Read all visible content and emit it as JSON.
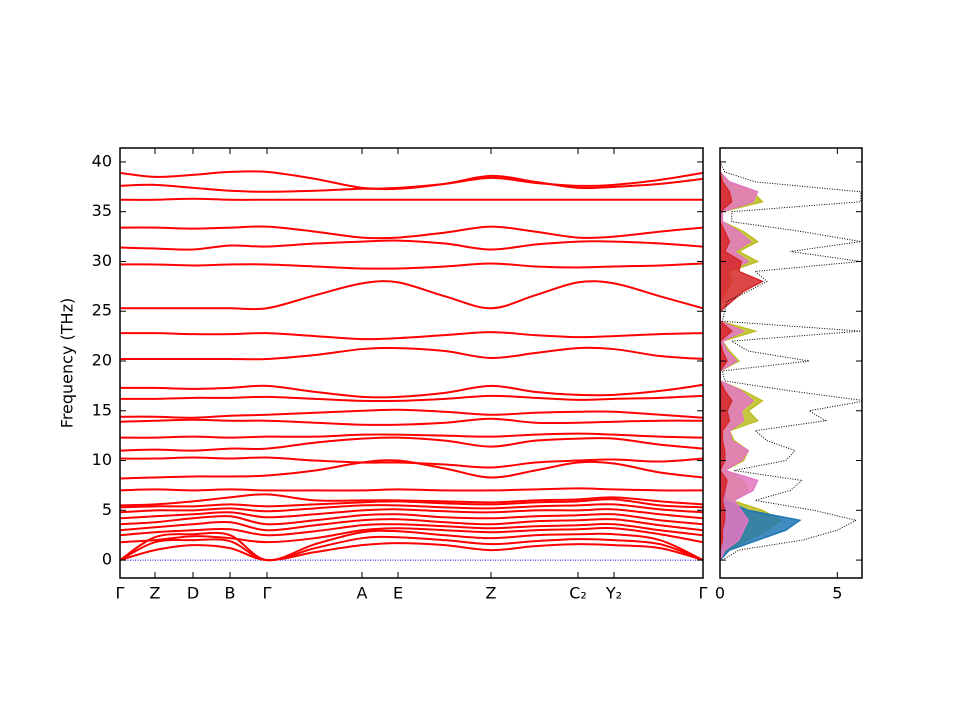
{
  "chart_data": [
    {
      "type": "bands",
      "ylabel": "Frequency (THz)",
      "x": [
        0,
        35,
        73,
        110,
        147,
        195,
        242,
        278,
        325,
        371,
        415,
        458,
        494,
        540,
        583
      ],
      "xlim": [
        0,
        583
      ],
      "xticks": [
        {
          "value": 0,
          "label": "Γ"
        },
        {
          "value": 35,
          "label": "Z"
        },
        {
          "value": 73,
          "label": "D"
        },
        {
          "value": 110,
          "label": "B"
        },
        {
          "value": 147,
          "label": "Γ"
        },
        {
          "value": 242,
          "label": "A"
        },
        {
          "value": 278,
          "label": "E"
        },
        {
          "value": 371,
          "label": "Z"
        },
        {
          "value": 458,
          "label": "C₂"
        },
        {
          "value": 494,
          "label": "Y₂"
        },
        {
          "value": 583,
          "label": "Γ"
        }
      ],
      "ylim": [
        -1.8,
        41.4
      ],
      "yticks": [
        0,
        5,
        10,
        15,
        20,
        25,
        30,
        35,
        40
      ],
      "color": "#ff0000",
      "bands": [
        [
          0,
          1.0,
          1.5,
          1.2,
          0,
          0.8,
          1.5,
          1.7,
          1.5,
          1.0,
          1.4,
          1.6,
          1.5,
          1.2,
          0
        ],
        [
          0,
          1.8,
          2.0,
          1.9,
          0,
          1.2,
          2.2,
          2.3,
          2.0,
          1.6,
          1.9,
          2.1,
          2.0,
          1.6,
          0
        ],
        [
          0,
          2.3,
          2.6,
          2.5,
          0,
          1.6,
          2.8,
          2.9,
          2.5,
          2.2,
          2.5,
          2.6,
          2.6,
          2.0,
          0
        ],
        [
          1.8,
          2.0,
          2.4,
          2.2,
          1.8,
          2.2,
          3.0,
          3.2,
          3.0,
          2.8,
          3.0,
          3.1,
          3.2,
          2.6,
          1.8
        ],
        [
          2.5,
          2.8,
          3.0,
          3.1,
          2.5,
          2.9,
          3.5,
          3.6,
          3.4,
          3.2,
          3.4,
          3.5,
          3.6,
          3.0,
          2.5
        ],
        [
          3.0,
          3.3,
          3.6,
          3.8,
          3.0,
          3.5,
          4.0,
          4.1,
          3.8,
          3.6,
          3.9,
          4.0,
          4.1,
          3.5,
          3.0
        ],
        [
          3.6,
          3.8,
          4.2,
          4.4,
          3.6,
          4.0,
          4.5,
          4.6,
          4.3,
          4.2,
          4.4,
          4.5,
          4.6,
          4.0,
          3.6
        ],
        [
          4.2,
          4.4,
          4.6,
          4.8,
          4.3,
          4.6,
          5.0,
          5.1,
          4.9,
          4.8,
          5.0,
          5.0,
          5.1,
          4.6,
          4.2
        ],
        [
          4.8,
          5.0,
          5.0,
          5.2,
          4.9,
          5.2,
          5.5,
          5.5,
          5.3,
          5.2,
          5.4,
          5.5,
          5.6,
          5.1,
          4.8
        ],
        [
          5.3,
          5.4,
          5.4,
          5.6,
          5.4,
          5.6,
          5.8,
          5.9,
          5.7,
          5.6,
          5.8,
          5.9,
          6.1,
          5.5,
          5.3
        ],
        [
          5.5,
          5.6,
          5.9,
          6.3,
          6.6,
          6.0,
          6.0,
          6.0,
          5.9,
          5.8,
          6.0,
          6.1,
          6.3,
          5.9,
          5.6
        ],
        [
          7.0,
          7.1,
          7.0,
          7.1,
          7.0,
          7.0,
          7.0,
          7.1,
          7.0,
          7.0,
          7.1,
          7.2,
          7.1,
          7.0,
          7.0
        ],
        [
          8.2,
          8.3,
          8.4,
          8.4,
          8.5,
          9.0,
          9.8,
          10.0,
          9.2,
          8.3,
          9.0,
          9.8,
          9.7,
          8.8,
          8.3
        ],
        [
          10.2,
          10.2,
          10.3,
          10.2,
          10.3,
          10.0,
          9.8,
          9.8,
          9.6,
          9.3,
          9.8,
          10.0,
          10.1,
          9.9,
          10.2
        ],
        [
          11.0,
          11.1,
          11.0,
          11.2,
          11.2,
          11.8,
          12.2,
          12.3,
          12.0,
          11.4,
          12.0,
          12.2,
          12.2,
          11.6,
          11.2
        ],
        [
          12.3,
          12.3,
          12.4,
          12.3,
          12.4,
          12.4,
          12.6,
          12.6,
          12.5,
          12.4,
          12.6,
          12.7,
          12.6,
          12.4,
          12.3
        ],
        [
          13.9,
          14.0,
          14.1,
          14.0,
          14.0,
          13.8,
          13.6,
          13.6,
          13.8,
          14.2,
          13.8,
          13.8,
          13.9,
          14.0,
          14.0
        ],
        [
          14.4,
          14.4,
          14.3,
          14.5,
          14.6,
          14.8,
          15.0,
          15.1,
          14.9,
          14.6,
          14.8,
          14.9,
          14.9,
          14.6,
          14.3
        ],
        [
          16.2,
          16.2,
          16.3,
          16.3,
          16.4,
          16.2,
          16.0,
          16.0,
          16.2,
          16.5,
          16.3,
          16.1,
          16.2,
          16.3,
          16.5
        ],
        [
          17.3,
          17.3,
          17.2,
          17.3,
          17.5,
          16.9,
          16.4,
          16.4,
          16.8,
          17.5,
          16.9,
          16.6,
          16.6,
          17.0,
          17.6
        ],
        [
          20.2,
          20.2,
          20.2,
          20.2,
          20.2,
          20.6,
          21.2,
          21.3,
          21.0,
          20.3,
          20.8,
          21.3,
          21.2,
          20.5,
          20.2
        ],
        [
          22.8,
          22.8,
          22.7,
          22.7,
          22.8,
          22.5,
          22.2,
          22.3,
          22.6,
          22.9,
          22.6,
          22.4,
          22.5,
          22.7,
          22.8
        ],
        [
          25.3,
          25.3,
          25.3,
          25.3,
          25.3,
          26.6,
          27.8,
          27.9,
          26.5,
          25.3,
          26.6,
          27.9,
          27.8,
          26.5,
          25.3
        ],
        [
          29.7,
          29.7,
          29.6,
          29.7,
          29.7,
          29.5,
          29.3,
          29.3,
          29.5,
          29.8,
          29.5,
          29.4,
          29.5,
          29.6,
          29.8
        ],
        [
          31.4,
          31.3,
          31.2,
          31.6,
          31.5,
          31.8,
          32.0,
          32.1,
          31.8,
          31.2,
          31.7,
          32.0,
          32.0,
          31.8,
          31.5
        ],
        [
          33.4,
          33.4,
          33.3,
          33.4,
          33.5,
          33.0,
          32.4,
          32.4,
          32.9,
          33.5,
          33.0,
          32.4,
          32.5,
          33.0,
          33.4
        ],
        [
          36.2,
          36.2,
          36.3,
          36.2,
          36.2,
          36.2,
          36.2,
          36.2,
          36.2,
          36.2,
          36.2,
          36.2,
          36.2,
          36.2,
          36.2
        ],
        [
          37.6,
          37.7,
          37.4,
          37.1,
          37.0,
          37.1,
          37.3,
          37.3,
          37.8,
          38.6,
          38.0,
          37.4,
          37.5,
          37.8,
          38.3
        ],
        [
          38.9,
          38.5,
          38.7,
          39.0,
          39.0,
          38.3,
          37.4,
          37.4,
          37.8,
          38.4,
          37.9,
          37.6,
          37.7,
          38.2,
          38.9
        ]
      ]
    },
    {
      "type": "dos",
      "frequencies": [
        0,
        1,
        2,
        3,
        4,
        5,
        6,
        7,
        8,
        9,
        10,
        11,
        12,
        13,
        14,
        15,
        16,
        17,
        18,
        19,
        20,
        21,
        22,
        23,
        24,
        25,
        26,
        27,
        28,
        29,
        30,
        31,
        32,
        33,
        34,
        35,
        36,
        37,
        38,
        39,
        40
      ],
      "xlim": [
        0,
        6.05
      ],
      "xticks": [
        0,
        5
      ],
      "ylim": [
        -1.8,
        41.4
      ],
      "yticks": [
        0,
        5,
        10,
        15,
        20,
        25,
        30,
        35,
        40
      ],
      "total": {
        "color": "#000000",
        "values": [
          0.1,
          0.8,
          3.5,
          5.0,
          5.8,
          4.0,
          1.5,
          3.0,
          3.5,
          0.6,
          2.8,
          3.2,
          2.0,
          1.5,
          4.5,
          3.8,
          6.2,
          3.0,
          0.2,
          0.1,
          3.8,
          1.2,
          0.5,
          6.0,
          0.1,
          0.2,
          0.3,
          1.2,
          2.0,
          1.5,
          6.0,
          3.0,
          6.0,
          3.5,
          0.5,
          0.5,
          6.0,
          6.0,
          1.5,
          0.2,
          0.0
        ]
      },
      "partials": [
        {
          "color": "#bcbd22",
          "values": [
            0,
            0.3,
            1.2,
            2.0,
            2.6,
            1.8,
            0.5,
            1.2,
            1.0,
            0.2,
            1.0,
            1.2,
            0.6,
            0.4,
            1.6,
            1.2,
            1.8,
            1.0,
            0,
            0,
            0.8,
            0.4,
            0.1,
            1.5,
            0,
            0,
            0,
            0.3,
            0.5,
            0.4,
            1.6,
            0.8,
            1.6,
            1.0,
            0.1,
            0.1,
            1.8,
            1.4,
            0.3,
            0,
            0
          ]
        },
        {
          "color": "#1f77b4",
          "values": [
            0,
            0.4,
            1.6,
            2.8,
            3.4,
            1.2,
            0.2,
            0.2,
            0.2,
            0,
            0.1,
            0.1,
            0.1,
            0,
            0.1,
            0.1,
            0.1,
            0,
            0,
            0,
            0,
            0,
            0,
            0,
            0,
            0,
            0,
            0,
            0,
            0,
            0,
            0,
            0,
            0,
            0,
            0,
            0,
            0,
            0,
            0,
            0
          ]
        },
        {
          "color": "#e377c2",
          "values": [
            0,
            0.2,
            0.8,
            1.0,
            1.2,
            0.9,
            0.6,
            1.4,
            1.6,
            0.2,
            0.9,
            1.2,
            0.5,
            0.4,
            1.0,
            0.9,
            1.4,
            0.9,
            0,
            0,
            0.7,
            0.3,
            0.1,
            1.0,
            0,
            0,
            0,
            0.2,
            0.4,
            0.3,
            1.2,
            0.6,
            1.3,
            0.8,
            0.1,
            0.1,
            1.4,
            1.6,
            0.4,
            0,
            0
          ]
        },
        {
          "color": "#d62728",
          "values": [
            0,
            0,
            0.1,
            0.1,
            0.2,
            0.2,
            0.1,
            0.2,
            0.3,
            0,
            0.2,
            0.2,
            0.1,
            0.1,
            0.4,
            0.3,
            0.5,
            0.2,
            0,
            0,
            0.3,
            0.1,
            0,
            0.5,
            0,
            0,
            0.5,
            1.0,
            1.8,
            0.8,
            0.9,
            0.2,
            0.4,
            0.2,
            0,
            0,
            0.5,
            0.4,
            0.1,
            0,
            0
          ]
        }
      ]
    }
  ]
}
